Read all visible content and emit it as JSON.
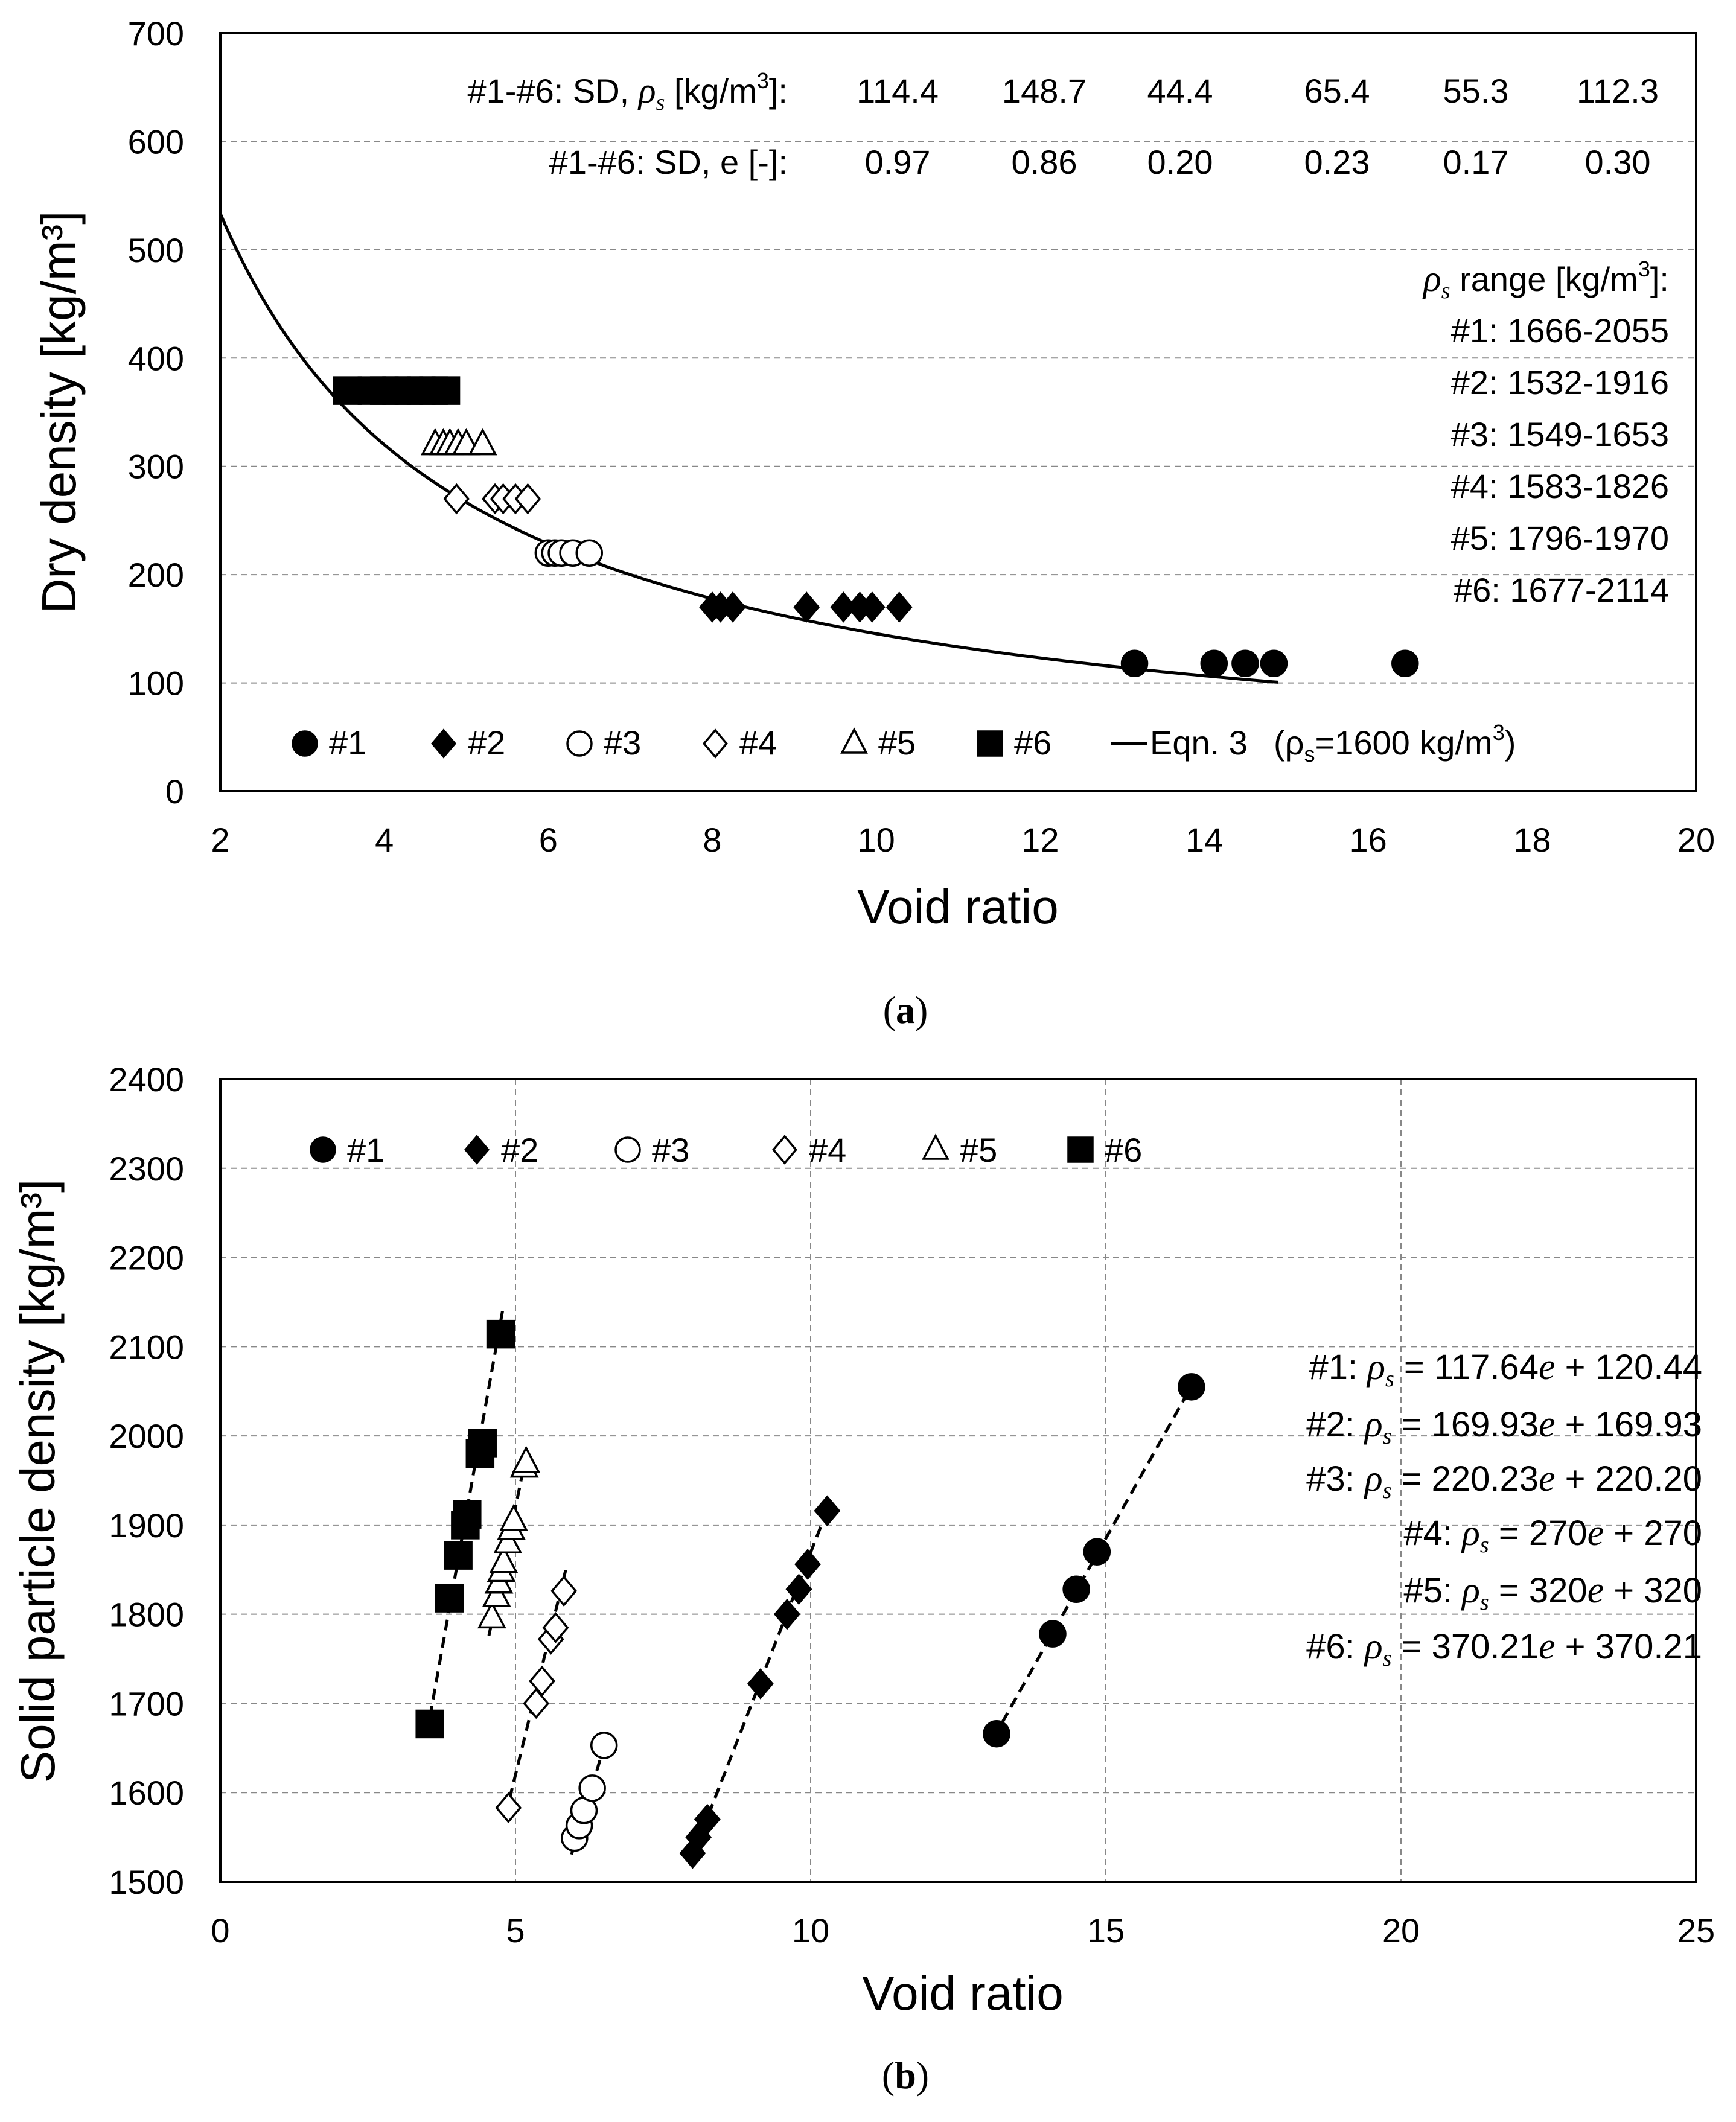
{
  "chart_data": [
    {
      "type": "scatter",
      "panel_label": "(a)",
      "xlabel": "Void ratio",
      "ylabel": "Dry density [kg/m³]",
      "xlim": [
        2,
        20
      ],
      "ylim": [
        0,
        700
      ],
      "xticks": [
        2,
        4,
        6,
        8,
        10,
        12,
        14,
        16,
        18,
        20
      ],
      "yticks": [
        0,
        100,
        200,
        300,
        400,
        500,
        600,
        700
      ],
      "grid": "dashed",
      "legend_position": "bottom",
      "series": [
        {
          "name": "#1",
          "marker": "circle",
          "filled": true,
          "points": [
            [
              13.15,
              118
            ],
            [
              14.12,
              118
            ],
            [
              14.5,
              118
            ],
            [
              14.85,
              118
            ],
            [
              16.45,
              118
            ]
          ]
        },
        {
          "name": "#2",
          "marker": "diamond",
          "filled": true,
          "points": [
            [
              8.0,
              170
            ],
            [
              8.1,
              170
            ],
            [
              8.25,
              170
            ],
            [
              9.15,
              170
            ],
            [
              9.6,
              170
            ],
            [
              9.8,
              170
            ],
            [
              9.95,
              170
            ],
            [
              10.28,
              170
            ]
          ]
        },
        {
          "name": "#3",
          "marker": "circle",
          "filled": false,
          "points": [
            [
              6.0,
              220
            ],
            [
              6.08,
              220
            ],
            [
              6.16,
              220
            ],
            [
              6.3,
              220
            ],
            [
              6.5,
              220
            ]
          ]
        },
        {
          "name": "#4",
          "marker": "diamond",
          "filled": false,
          "points": [
            [
              4.88,
              270
            ],
            [
              5.35,
              270
            ],
            [
              5.45,
              270
            ],
            [
              5.6,
              270
            ],
            [
              5.75,
              270
            ]
          ]
        },
        {
          "name": "#5",
          "marker": "triangle",
          "filled": false,
          "points": [
            [
              4.62,
              320
            ],
            [
              4.72,
              320
            ],
            [
              4.8,
              320
            ],
            [
              4.9,
              320
            ],
            [
              5.0,
              320
            ],
            [
              5.2,
              320
            ]
          ]
        },
        {
          "name": "#6",
          "marker": "square",
          "filled": true,
          "points": [
            [
              3.55,
              370
            ],
            [
              3.85,
              370
            ],
            [
              4.0,
              370
            ],
            [
              4.15,
              370
            ],
            [
              4.3,
              370
            ],
            [
              4.45,
              370
            ],
            [
              4.6,
              370
            ],
            [
              4.75,
              370
            ]
          ]
        }
      ],
      "curve": {
        "name": "Eqn. 3",
        "rho_s": 1600,
        "x_range": [
          2,
          14.9
        ]
      },
      "legend": [
        {
          "marker": "circle-filled",
          "label": "#1"
        },
        {
          "marker": "diamond-filled",
          "label": "#2"
        },
        {
          "marker": "circle-open",
          "label": "#3"
        },
        {
          "marker": "diamond-open",
          "label": "#4"
        },
        {
          "marker": "triangle-open",
          "label": "#5"
        },
        {
          "marker": "square-filled",
          "label": "#6"
        },
        {
          "marker": "line",
          "label": "Eqn. 3"
        }
      ],
      "legend_eqn_note_pre": "(ρ",
      "legend_eqn_note_sub": "s",
      "legend_eqn_note_mid": "=1600 kg/m",
      "legend_eqn_note_sup": "3",
      "legend_eqn_note_post": ")",
      "sd_rho_label_pre": "#1-#6: SD, ",
      "sd_rho_label_sym": "ρ",
      "sd_rho_label_sub": "s",
      "sd_rho_label_post": " [kg/m",
      "sd_rho_label_sup": "3",
      "sd_rho_label_end": "]:",
      "sd_rho_values": [
        "114.4",
        "148.7",
        "44.4",
        "65.4",
        "55.3",
        "112.3"
      ],
      "sd_e_label": "#1-#6: SD, e [-]:",
      "sd_e_values": [
        "0.97",
        "0.86",
        "0.20",
        "0.23",
        "0.17",
        "0.30"
      ],
      "range_title_sym": "ρ",
      "range_title_sub": "s",
      "range_title_post": " range [kg/m",
      "range_title_sup": "3",
      "range_title_end": "]:",
      "ranges": [
        "#1: 1666-2055",
        "#2: 1532-1916",
        "#3: 1549-1653",
        "#4: 1583-1826",
        "#5: 1796-1970",
        "#6: 1677-2114"
      ]
    },
    {
      "type": "scatter",
      "panel_label": "(b)",
      "xlabel": "Void ratio",
      "ylabel": "Solid particle density [kg/m³]",
      "xlim": [
        0,
        25
      ],
      "ylim": [
        1500,
        2400
      ],
      "xticks": [
        0,
        5,
        10,
        15,
        20,
        25
      ],
      "yticks": [
        1500,
        1600,
        1700,
        1800,
        1900,
        2000,
        2100,
        2200,
        2300,
        2400
      ],
      "grid": "dashed",
      "legend_position": "top-left",
      "series": [
        {
          "name": "#1",
          "marker": "circle",
          "filled": true,
          "points": [
            [
              13.15,
              1666
            ],
            [
              14.1,
              1778
            ],
            [
              14.5,
              1828
            ],
            [
              14.85,
              1870
            ],
            [
              16.45,
              2055
            ]
          ],
          "fit": {
            "slope": 117.64,
            "intercept": 120.44,
            "x_range": [
              13.1,
              16.5
            ]
          }
        },
        {
          "name": "#2",
          "marker": "diamond",
          "filled": true,
          "points": [
            [
              8.0,
              1532
            ],
            [
              8.1,
              1550
            ],
            [
              8.25,
              1570
            ],
            [
              9.15,
              1722
            ],
            [
              9.6,
              1800
            ],
            [
              9.8,
              1828
            ],
            [
              9.95,
              1856
            ],
            [
              10.28,
              1916
            ]
          ],
          "fit": {
            "slope": 169.93,
            "intercept": 169.93,
            "x_range": [
              7.95,
              10.3
            ]
          }
        },
        {
          "name": "#3",
          "marker": "circle",
          "filled": false,
          "points": [
            [
              6.0,
              1549
            ],
            [
              6.08,
              1563
            ],
            [
              6.16,
              1580
            ],
            [
              6.3,
              1605
            ],
            [
              6.5,
              1653
            ]
          ],
          "fit": {
            "slope": 220.23,
            "intercept": 220.2,
            "x_range": [
              5.95,
              6.55
            ]
          }
        },
        {
          "name": "#4",
          "marker": "diamond",
          "filled": false,
          "points": [
            [
              4.88,
              1583
            ],
            [
              5.35,
              1700
            ],
            [
              5.45,
              1725
            ],
            [
              5.6,
              1772
            ],
            [
              5.68,
              1785
            ],
            [
              5.82,
              1826
            ]
          ],
          "fit": {
            "slope": 270,
            "intercept": 270,
            "x_range": [
              4.83,
              5.85
            ]
          }
        },
        {
          "name": "#5",
          "marker": "triangle",
          "filled": false,
          "points": [
            [
              4.6,
              1796
            ],
            [
              4.68,
              1820
            ],
            [
              4.72,
              1835
            ],
            [
              4.76,
              1848
            ],
            [
              4.8,
              1858
            ],
            [
              4.87,
              1880
            ],
            [
              4.93,
              1895
            ],
            [
              4.97,
              1905
            ],
            [
              5.15,
              1965
            ],
            [
              5.18,
              1970
            ]
          ],
          "fit": {
            "slope": 320,
            "intercept": 320,
            "x_range": [
              4.55,
              5.2
            ]
          }
        },
        {
          "name": "#6",
          "marker": "square",
          "filled": true,
          "points": [
            [
              3.55,
              1677
            ],
            [
              3.88,
              1818
            ],
            [
              4.03,
              1866
            ],
            [
              4.15,
              1900
            ],
            [
              4.18,
              1912
            ],
            [
              4.4,
              1980
            ],
            [
              4.44,
              1992
            ],
            [
              4.75,
              2114
            ]
          ],
          "fit": {
            "slope": 370.21,
            "intercept": 370.21,
            "x_range": [
              3.5,
              4.78
            ]
          }
        }
      ],
      "legend": [
        {
          "marker": "circle-filled",
          "label": "#1"
        },
        {
          "marker": "diamond-filled",
          "label": "#2"
        },
        {
          "marker": "circle-open",
          "label": "#3"
        },
        {
          "marker": "diamond-open",
          "label": "#4"
        },
        {
          "marker": "triangle-open",
          "label": "#5"
        },
        {
          "marker": "square-filled",
          "label": "#6"
        }
      ],
      "equations": [
        {
          "label": "#1: ",
          "sym": "ρ",
          "sub": "s",
          "mid": " = 117.64",
          "e": "e",
          "rest": " + 120.44"
        },
        {
          "label": "#2: ",
          "sym": "ρ",
          "sub": "s",
          "mid": " = 169.93",
          "e": "e",
          "rest": " + 169.93"
        },
        {
          "label": "#3: ",
          "sym": "ρ",
          "sub": "s",
          "mid": " = 220.23",
          "e": "e",
          "rest": " + 220.20"
        },
        {
          "label": "#4: ",
          "sym": "ρ",
          "sub": "s",
          "mid": " = 270",
          "e": "e",
          "rest": " + 270"
        },
        {
          "label": "#5: ",
          "sym": "ρ",
          "sub": "s",
          "mid": " = 320",
          "e": "e",
          "rest": " + 320"
        },
        {
          "label": "#6: ",
          "sym": "ρ",
          "sub": "s",
          "mid": " = 370.21",
          "e": "e",
          "rest": " + 370.21"
        }
      ]
    }
  ]
}
